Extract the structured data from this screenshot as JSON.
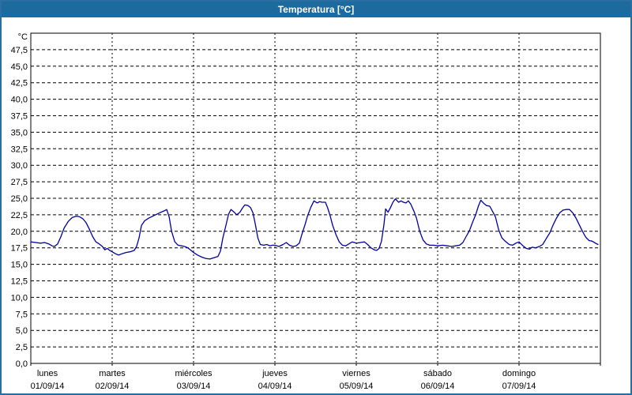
{
  "window": {
    "title": "Temperatura [°C]"
  },
  "colors": {
    "title_bar": "#1d6a9e",
    "window_border": "#2b6ea1",
    "line": "#0000a0",
    "grid": "#000000",
    "axis": "#000000",
    "background": "#ffffff"
  },
  "chart_data": {
    "type": "line",
    "title": "Temperatura [°C]",
    "y_unit": "°C",
    "decimal_separator": ",",
    "grid": "dashed",
    "legend": "none",
    "y_axis": {
      "min": 0,
      "max": 50,
      "step": 2.5,
      "tick_labels": [
        "0,0",
        "2,5",
        "5,0",
        "7,5",
        "10,0",
        "12,5",
        "15,0",
        "17,5",
        "20,0",
        "22,5",
        "25,0",
        "27,5",
        "30,0",
        "32,5",
        "35,0",
        "37,5",
        "40,0",
        "42,5",
        "45,0",
        "47,5"
      ]
    },
    "x_axis": {
      "range_days": 7,
      "days": [
        {
          "weekday": "lunes",
          "date": "01/09/14"
        },
        {
          "weekday": "martes",
          "date": "02/09/14"
        },
        {
          "weekday": "miércoles",
          "date": "03/09/14"
        },
        {
          "weekday": "jueves",
          "date": "04/09/14"
        },
        {
          "weekday": "viernes",
          "date": "05/09/14"
        },
        {
          "weekday": "sábado",
          "date": "06/09/14"
        },
        {
          "weekday": "domingo",
          "date": "07/09/14"
        }
      ]
    },
    "series": [
      {
        "name": "Temperatura",
        "color": "#0000a0",
        "points": [
          [
            0.0,
            18.4
          ],
          [
            0.06,
            18.3
          ],
          [
            0.12,
            18.2
          ],
          [
            0.17,
            18.3
          ],
          [
            0.22,
            18.1
          ],
          [
            0.26,
            17.8
          ],
          [
            0.29,
            17.7
          ],
          [
            0.33,
            18.1
          ],
          [
            0.37,
            19.2
          ],
          [
            0.41,
            20.5
          ],
          [
            0.46,
            21.5
          ],
          [
            0.51,
            22.1
          ],
          [
            0.56,
            22.3
          ],
          [
            0.6,
            22.2
          ],
          [
            0.64,
            21.9
          ],
          [
            0.68,
            21.3
          ],
          [
            0.72,
            20.3
          ],
          [
            0.76,
            19.2
          ],
          [
            0.8,
            18.4
          ],
          [
            0.84,
            18.1
          ],
          [
            0.88,
            17.7
          ],
          [
            0.91,
            17.2
          ],
          [
            0.94,
            17.4
          ],
          [
            0.97,
            17.1
          ],
          [
            1.0,
            16.9
          ],
          [
            1.04,
            16.6
          ],
          [
            1.08,
            16.4
          ],
          [
            1.12,
            16.6
          ],
          [
            1.17,
            16.8
          ],
          [
            1.22,
            16.9
          ],
          [
            1.27,
            17.1
          ],
          [
            1.3,
            17.7
          ],
          [
            1.33,
            19.0
          ],
          [
            1.36,
            20.9
          ],
          [
            1.4,
            21.6
          ],
          [
            1.45,
            22.0
          ],
          [
            1.5,
            22.3
          ],
          [
            1.55,
            22.6
          ],
          [
            1.6,
            22.9
          ],
          [
            1.64,
            23.1
          ],
          [
            1.67,
            23.3
          ],
          [
            1.7,
            22.2
          ],
          [
            1.73,
            20.0
          ],
          [
            1.77,
            18.4
          ],
          [
            1.81,
            17.9
          ],
          [
            1.85,
            17.8
          ],
          [
            1.89,
            17.7
          ],
          [
            1.93,
            17.5
          ],
          [
            1.97,
            17.1
          ],
          [
            2.0,
            16.8
          ],
          [
            2.05,
            16.4
          ],
          [
            2.1,
            16.1
          ],
          [
            2.15,
            15.9
          ],
          [
            2.2,
            15.8
          ],
          [
            2.25,
            16.0
          ],
          [
            2.3,
            16.2
          ],
          [
            2.33,
            17.0
          ],
          [
            2.36,
            19.0
          ],
          [
            2.4,
            21.0
          ],
          [
            2.43,
            22.6
          ],
          [
            2.46,
            23.3
          ],
          [
            2.5,
            22.9
          ],
          [
            2.53,
            22.5
          ],
          [
            2.57,
            22.9
          ],
          [
            2.6,
            23.5
          ],
          [
            2.63,
            24.0
          ],
          [
            2.67,
            23.9
          ],
          [
            2.7,
            23.6
          ],
          [
            2.73,
            22.8
          ],
          [
            2.76,
            21.0
          ],
          [
            2.79,
            19.0
          ],
          [
            2.82,
            18.0
          ],
          [
            2.86,
            17.9
          ],
          [
            2.9,
            18.0
          ],
          [
            2.94,
            17.8
          ],
          [
            2.97,
            17.9
          ],
          [
            3.0,
            17.9
          ],
          [
            3.05,
            17.7
          ],
          [
            3.1,
            18.0
          ],
          [
            3.14,
            18.3
          ],
          [
            3.18,
            17.9
          ],
          [
            3.22,
            17.7
          ],
          [
            3.26,
            17.8
          ],
          [
            3.3,
            18.2
          ],
          [
            3.33,
            19.5
          ],
          [
            3.37,
            21.0
          ],
          [
            3.4,
            22.3
          ],
          [
            3.44,
            23.6
          ],
          [
            3.48,
            24.6
          ],
          [
            3.52,
            24.3
          ],
          [
            3.55,
            24.5
          ],
          [
            3.58,
            24.4
          ],
          [
            3.62,
            24.4
          ],
          [
            3.65,
            23.5
          ],
          [
            3.68,
            22.3
          ],
          [
            3.71,
            20.9
          ],
          [
            3.75,
            19.5
          ],
          [
            3.79,
            18.4
          ],
          [
            3.83,
            17.9
          ],
          [
            3.87,
            17.8
          ],
          [
            3.91,
            18.1
          ],
          [
            3.95,
            18.4
          ],
          [
            4.0,
            18.2
          ],
          [
            4.05,
            18.3
          ],
          [
            4.1,
            18.4
          ],
          [
            4.14,
            18.0
          ],
          [
            4.18,
            17.5
          ],
          [
            4.22,
            17.2
          ],
          [
            4.25,
            17.1
          ],
          [
            4.28,
            17.4
          ],
          [
            4.31,
            18.5
          ],
          [
            4.34,
            21.0
          ],
          [
            4.36,
            23.4
          ],
          [
            4.39,
            22.9
          ],
          [
            4.42,
            23.6
          ],
          [
            4.45,
            24.4
          ],
          [
            4.48,
            24.9
          ],
          [
            4.52,
            24.4
          ],
          [
            4.55,
            24.6
          ],
          [
            4.58,
            24.4
          ],
          [
            4.61,
            24.3
          ],
          [
            4.64,
            24.6
          ],
          [
            4.67,
            24.1
          ],
          [
            4.71,
            23.0
          ],
          [
            4.74,
            22.0
          ],
          [
            4.78,
            20.0
          ],
          [
            4.82,
            18.7
          ],
          [
            4.86,
            18.1
          ],
          [
            4.9,
            17.9
          ],
          [
            4.95,
            17.9
          ],
          [
            5.0,
            17.8
          ],
          [
            5.06,
            17.9
          ],
          [
            5.12,
            17.8
          ],
          [
            5.17,
            17.7
          ],
          [
            5.22,
            17.8
          ],
          [
            5.27,
            17.9
          ],
          [
            5.31,
            18.3
          ],
          [
            5.35,
            19.2
          ],
          [
            5.39,
            20.1
          ],
          [
            5.43,
            21.4
          ],
          [
            5.47,
            22.6
          ],
          [
            5.5,
            23.8
          ],
          [
            5.53,
            24.7
          ],
          [
            5.57,
            24.2
          ],
          [
            5.6,
            23.9
          ],
          [
            5.64,
            23.8
          ],
          [
            5.68,
            22.9
          ],
          [
            5.71,
            22.2
          ],
          [
            5.75,
            20.2
          ],
          [
            5.79,
            19.0
          ],
          [
            5.83,
            18.5
          ],
          [
            5.88,
            18.0
          ],
          [
            5.92,
            17.9
          ],
          [
            5.96,
            18.2
          ],
          [
            6.0,
            18.4
          ],
          [
            6.05,
            17.8
          ],
          [
            6.09,
            17.4
          ],
          [
            6.13,
            17.3
          ],
          [
            6.16,
            17.6
          ],
          [
            6.2,
            17.5
          ],
          [
            6.25,
            17.7
          ],
          [
            6.29,
            18.0
          ],
          [
            6.33,
            18.8
          ],
          [
            6.38,
            19.8
          ],
          [
            6.42,
            21.0
          ],
          [
            6.46,
            22.0
          ],
          [
            6.5,
            22.8
          ],
          [
            6.54,
            23.2
          ],
          [
            6.58,
            23.3
          ],
          [
            6.62,
            23.3
          ],
          [
            6.66,
            22.8
          ],
          [
            6.7,
            22.0
          ],
          [
            6.74,
            21.0
          ],
          [
            6.78,
            20.0
          ],
          [
            6.82,
            19.1
          ],
          [
            6.86,
            18.6
          ],
          [
            6.9,
            18.5
          ],
          [
            6.94,
            18.2
          ],
          [
            6.97,
            18.0
          ]
        ]
      }
    ]
  }
}
